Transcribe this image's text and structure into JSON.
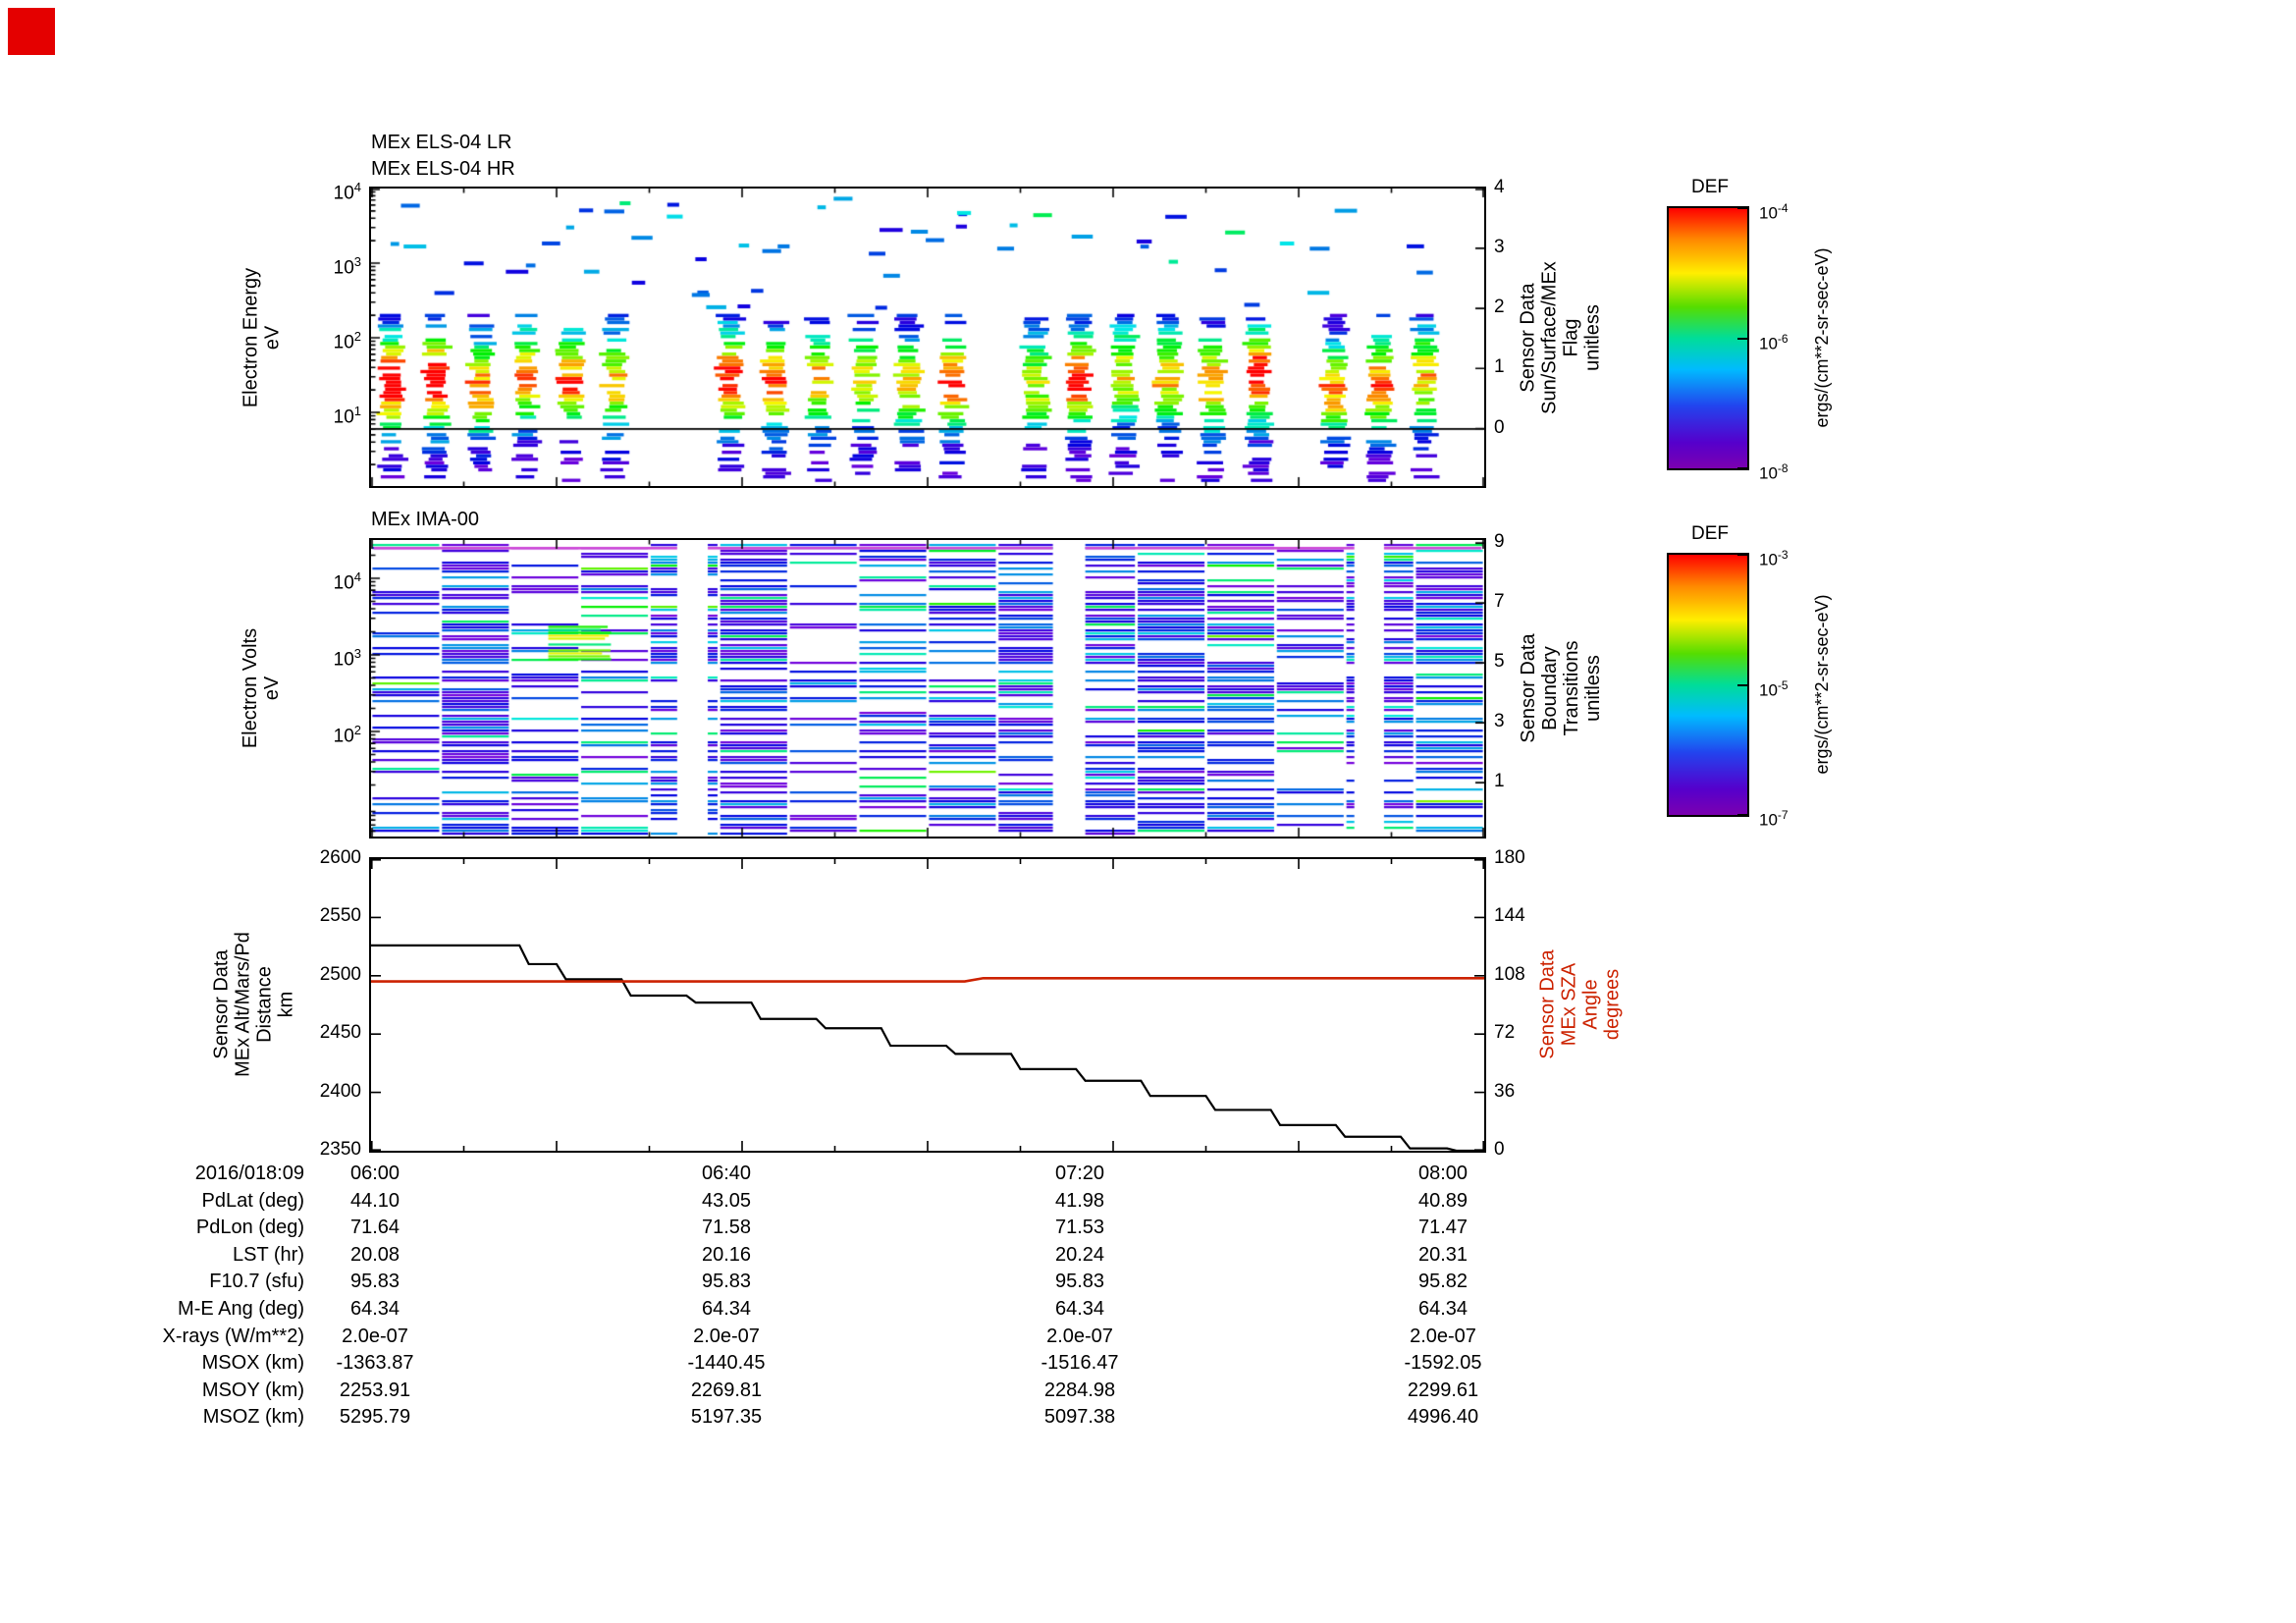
{
  "page": {
    "background": "#ffffff",
    "marker_color": "#e40000"
  },
  "x_axis": {
    "date_label": "2016/018:09",
    "ticks": [
      "06:00",
      "06:40",
      "07:20",
      "08:00"
    ],
    "start_minutes": 0,
    "end_minutes": 120,
    "major_tick_minutes": [
      0,
      20,
      40,
      60,
      80,
      100,
      120
    ],
    "minor_tick_minutes": [
      10,
      30,
      50,
      70,
      90,
      110
    ]
  },
  "chart_data": [
    {
      "id": "els",
      "type": "heatmap",
      "title_lr": "MEx ELS-04 LR",
      "title_hr": "MEx ELS-04 HR",
      "ylabel": "Electron Energy\neV",
      "y_scale": "log",
      "y_tick_exponents": [
        4,
        3,
        2,
        1
      ],
      "y_range_exponents": [
        0,
        4
      ],
      "right_label": "Sensor Data\nSun/Surface/MEx\nFlag\nunitless",
      "right_ticks": [
        4,
        3,
        2,
        1,
        0
      ],
      "flag_line_value": 0,
      "colorbar": {
        "title": "DEF",
        "tick_exponents": [
          -4,
          -6,
          -8
        ],
        "units": "ergs/(cm**2-sr-sec-eV)"
      },
      "texture": {
        "seed": 20160118,
        "burst_groups_minutes": [
          [
            2.3,
            30.8
          ],
          [
            38.8,
            66.3
          ],
          [
            71.6,
            99.7
          ],
          [
            104,
            118
          ]
        ],
        "stripe_period_minutes": 4.8,
        "stripe_width_minutes": 2.9,
        "core_energy_log10": 1.43,
        "energy_span_ev": [
          2,
          200
        ],
        "sparse_dash_energy_ev": [
          250,
          9000
        ]
      }
    },
    {
      "id": "ima",
      "type": "heatmap",
      "title": "MEx IMA-00",
      "ylabel": "Electron Volts\neV",
      "y_scale": "log",
      "y_tick_exponents": [
        4,
        3,
        2
      ],
      "right_label": "Sensor Data\nBoundary\nTransitions\nunitless",
      "right_ticks": [
        9,
        7,
        5,
        3,
        1
      ],
      "colorbar": {
        "title": "DEF",
        "tick_exponents": [
          -3,
          -5,
          -7
        ],
        "units": "ergs/(cm**2-sr-sec-eV)"
      },
      "texture": {
        "seed": 777101,
        "block_minutes": 7.5,
        "white_gaps_minutes": [
          [
            33,
            36.3
          ],
          [
            73.5,
            77
          ],
          [
            106,
            109.2
          ]
        ],
        "green_band": {
          "t_minutes": [
            19,
            26.2
          ],
          "log_ev": [
            2.85,
            3.38
          ]
        },
        "top_line_color": "#cd46d7"
      }
    },
    {
      "id": "ephemeris",
      "type": "line",
      "left_label": "Sensor Data\nMEx Alt/Mars/Pd\nDistance\nkm",
      "left_ticks": [
        2600,
        2550,
        2500,
        2450,
        2400,
        2350
      ],
      "left_range": [
        2350,
        2600
      ],
      "right_label": "Sensor Data\nMEx SZA\nAngle\ndegrees",
      "right_ticks": [
        180,
        144,
        108,
        72,
        36,
        0
      ],
      "right_range": [
        0,
        180
      ],
      "right_color": "#cc2200",
      "series": [
        {
          "name": "MEx Alt/Mars/Pd Distance",
          "axis": "left",
          "color": "#000000",
          "t_minutes": [
            0,
            16,
            17,
            20,
            21,
            27,
            28,
            34,
            35,
            41,
            42,
            48,
            49,
            55,
            56,
            62,
            63,
            69,
            70,
            76,
            77,
            83,
            84,
            90,
            91,
            97,
            98,
            104,
            105,
            111,
            112,
            116,
            117,
            120
          ],
          "values": [
            2526,
            2526,
            2510,
            2510,
            2497,
            2497,
            2483,
            2483,
            2477,
            2477,
            2463,
            2463,
            2455,
            2455,
            2440,
            2440,
            2433,
            2433,
            2420,
            2420,
            2410,
            2410,
            2397,
            2397,
            2385,
            2385,
            2372,
            2372,
            2362,
            2362,
            2352,
            2352,
            2350,
            2350
          ]
        },
        {
          "name": "MEx SZA Angle",
          "axis": "right",
          "color": "#cc2200",
          "t_minutes": [
            0,
            64,
            66,
            120
          ],
          "values": [
            104.5,
            104.5,
            106.5,
            106.5
          ]
        }
      ]
    }
  ],
  "table": {
    "rows": [
      {
        "label": "PdLat (deg)",
        "values": [
          "44.10",
          "43.05",
          "41.98",
          "40.89"
        ]
      },
      {
        "label": "PdLon (deg)",
        "values": [
          "71.64",
          "71.58",
          "71.53",
          "71.47"
        ]
      },
      {
        "label": "LST (hr)",
        "values": [
          "20.08",
          "20.16",
          "20.24",
          "20.31"
        ]
      },
      {
        "label": "F10.7 (sfu)",
        "values": [
          "95.83",
          "95.83",
          "95.83",
          "95.82"
        ]
      },
      {
        "label": "M-E Ang (deg)",
        "values": [
          "64.34",
          "64.34",
          "64.34",
          "64.34"
        ]
      },
      {
        "label": "X-rays (W/m**2)",
        "values": [
          "2.0e-07",
          "2.0e-07",
          "2.0e-07",
          "2.0e-07"
        ]
      },
      {
        "label": "MSOX (km)",
        "values": [
          "-1363.87",
          "-1440.45",
          "-1516.47",
          "-1592.05"
        ]
      },
      {
        "label": "MSOY (km)",
        "values": [
          "2253.91",
          "2269.81",
          "2284.98",
          "2299.61"
        ]
      },
      {
        "label": "MSOZ (km)",
        "values": [
          "5295.79",
          "5197.35",
          "5097.38",
          "4996.40"
        ]
      }
    ]
  }
}
